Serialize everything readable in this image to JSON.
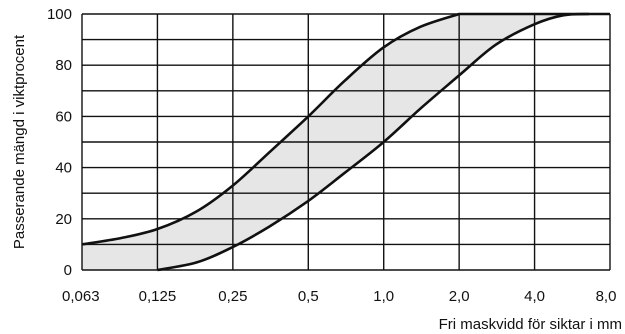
{
  "chart_data": {
    "type": "area",
    "title": "",
    "xlabel": "Fri maskvidd för siktar i mm",
    "ylabel": "Passerande mängd i viktprocent",
    "x_scale": "log2",
    "x_ticks": [
      "0,063",
      "0,125",
      "0,25",
      "0,5",
      "1,0",
      "2,0",
      "4,0",
      "8,0"
    ],
    "x_tick_values": [
      0.063,
      0.125,
      0.25,
      0.5,
      1.0,
      2.0,
      4.0,
      8.0
    ],
    "y_ticks": [
      "0",
      "20",
      "40",
      "60",
      "80",
      "100"
    ],
    "ylim": [
      0,
      100
    ],
    "grid": true,
    "band_fill": "#e6e6e6",
    "line_color": "#111111",
    "series": [
      {
        "x": [
          0.063,
          0.09,
          0.125,
          0.18,
          0.25,
          0.35,
          0.5,
          0.7,
          1.0,
          1.4,
          2.0
        ],
        "values": [
          10,
          12.5,
          16,
          23,
          33,
          46,
          60,
          74,
          87,
          95,
          100
        ]
      },
      {
        "x": [
          0.125,
          0.18,
          0.25,
          0.35,
          0.5,
          0.7,
          1.0,
          1.4,
          2.0,
          2.8,
          4.0,
          5.2,
          6.6
        ],
        "values": [
          0,
          3,
          9,
          17,
          27,
          38,
          50,
          63,
          76,
          88,
          96,
          99.5,
          100
        ]
      }
    ]
  }
}
